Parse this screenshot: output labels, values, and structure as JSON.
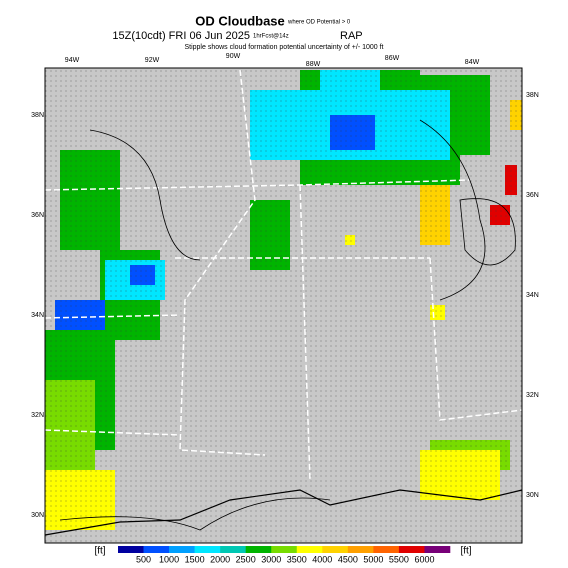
{
  "header": {
    "title": "OD Cloudbase",
    "title_note": "where OD Potential > 0",
    "valid": "15Z(10cdt) FRI 06 Jun 2025",
    "forecast": "1hrFcst@14z",
    "model": "RAP",
    "subtitle": "Stipple shows cloud formation potential uncertainty of +/- 1000 ft"
  },
  "map": {
    "lon_labels": [
      "94W",
      "92W",
      "90W",
      "88W",
      "86W",
      "84W"
    ],
    "lat_labels_left": [
      "38N",
      "36N",
      "34N",
      "32N",
      "30N"
    ],
    "lat_labels_right": [
      "38N",
      "36N",
      "34N",
      "32N",
      "30N"
    ]
  },
  "colorbar": {
    "unit_left": "[ft]",
    "unit_right": "[ft]",
    "labels": [
      500,
      1000,
      1500,
      2000,
      2500,
      3000,
      3500,
      4000,
      4500,
      5000,
      5500,
      6000
    ],
    "colors": [
      "#0000a0",
      "#0050ff",
      "#00a0ff",
      "#00e6ff",
      "#00c8b4",
      "#00b400",
      "#78dc00",
      "#ffff00",
      "#ffd200",
      "#ffa000",
      "#ff6400",
      "#e00000",
      "#780078"
    ]
  }
}
